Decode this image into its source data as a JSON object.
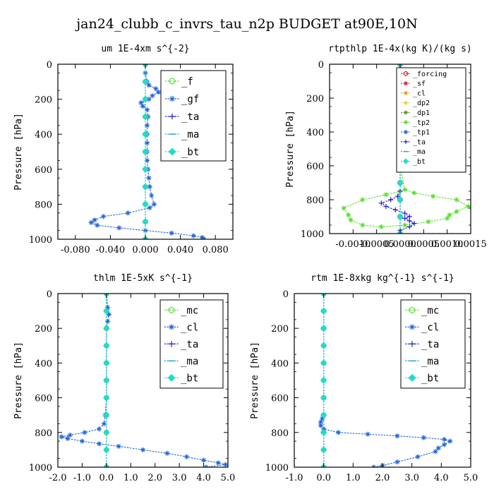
{
  "figure_title": "jan24_clubb_c_invrs_tau_n2p  BUDGET at90E,10N",
  "chart_data": [
    {
      "type": "line",
      "title": "um  1E-4xm s^{-2}",
      "ylabel": "Pressure [hPa]",
      "xlim": [
        -0.1,
        0.1
      ],
      "ylim": [
        1000,
        0
      ],
      "xticks": [
        "-0.080",
        "-0.040",
        "0.000",
        "0.040",
        "0.080"
      ],
      "xtick_values": [
        -0.08,
        -0.04,
        0.0,
        0.04,
        0.08
      ],
      "yticks": [
        "0",
        "200",
        "400",
        "600",
        "800",
        "1000"
      ],
      "ytick_values": [
        0,
        200,
        400,
        600,
        800,
        1000
      ],
      "legend": {
        "position": "top-right",
        "font_size": 14
      },
      "series": [
        {
          "name": "_f",
          "color": "#55e02a",
          "marker": "circle",
          "x": [
            0,
            0,
            0,
            0,
            0,
            0,
            0,
            0,
            0,
            0,
            0
          ],
          "y": [
            0,
            100,
            200,
            300,
            400,
            500,
            600,
            700,
            800,
            900,
            1000
          ]
        },
        {
          "name": "_gf",
          "color": "#1f63d8",
          "marker": "star",
          "x": [
            0.0,
            0.0,
            0.002,
            0.004,
            0.012,
            0.015,
            0.008,
            0.004,
            -0.005,
            -0.003,
            0.002,
            0.003,
            0.002,
            0.002,
            0.002,
            0.002,
            0.002,
            0.003,
            0.004,
            0.005,
            0.007,
            0.01,
            0.005,
            -0.02,
            -0.048,
            -0.058,
            -0.062,
            -0.055,
            -0.03,
            0.0,
            0.03,
            0.055,
            0.065,
            0.067
          ],
          "y": [
            0,
            50,
            100,
            120,
            140,
            160,
            180,
            200,
            220,
            240,
            260,
            300,
            350,
            400,
            450,
            500,
            550,
            600,
            650,
            700,
            750,
            800,
            820,
            850,
            870,
            890,
            905,
            920,
            935,
            950,
            965,
            980,
            990,
            1000
          ]
        },
        {
          "name": "_ta",
          "color": "#2222cc",
          "marker": "plus",
          "x": [
            0,
            0,
            0,
            0,
            0,
            0,
            0,
            0,
            0,
            0,
            0
          ],
          "y": [
            0,
            100,
            200,
            300,
            400,
            500,
            600,
            700,
            800,
            900,
            1000
          ]
        },
        {
          "name": "_ma",
          "color": "#1aa0d8",
          "marker": "dash",
          "x": [
            0,
            0,
            0,
            0,
            0,
            0,
            0,
            0,
            0,
            0,
            0
          ],
          "y": [
            0,
            100,
            200,
            300,
            400,
            500,
            600,
            700,
            800,
            900,
            1000
          ]
        },
        {
          "name": "_bt",
          "color": "#20dccc",
          "marker": "diamond",
          "x": [
            0,
            0,
            0,
            0,
            0,
            0,
            0,
            0,
            0,
            0,
            0
          ],
          "y": [
            0,
            100,
            200,
            300,
            400,
            500,
            600,
            700,
            800,
            900,
            1000
          ]
        }
      ]
    },
    {
      "type": "line",
      "title": "rtpthlp  1E-4x(kg K)/(kg s)",
      "ylabel": "Pressure [hPa]",
      "xlim": [
        -0.0015,
        0.0015
      ],
      "ylim": [
        1000,
        0
      ],
      "xticks": [
        "-0.0010",
        "-0.0005",
        "0.0000",
        "0.0005",
        "0.0010",
        "0.0015"
      ],
      "xtick_values": [
        -0.001,
        -0.0005,
        0.0,
        0.0005,
        0.001,
        0.0015
      ],
      "yticks": [
        "0",
        "200",
        "400",
        "600",
        "800",
        "1000"
      ],
      "ytick_values": [
        0,
        200,
        400,
        600,
        800,
        1000
      ],
      "legend": {
        "position": "top-right",
        "font_size": 10
      },
      "series": [
        {
          "name": "_forcing",
          "color": "#e02020",
          "marker": "circle",
          "x": [
            0,
            0,
            0,
            0,
            0,
            0,
            0,
            0,
            0,
            0,
            0
          ],
          "y": [
            0,
            100,
            200,
            300,
            400,
            500,
            600,
            700,
            800,
            900,
            1000
          ]
        },
        {
          "name": "_sf",
          "color": "#e02020",
          "marker": "star",
          "x": [
            0,
            0,
            0,
            0,
            0,
            0,
            0,
            0,
            0,
            0,
            0
          ],
          "y": [
            0,
            100,
            200,
            300,
            400,
            500,
            600,
            700,
            800,
            900,
            1000
          ]
        },
        {
          "name": "_cl",
          "color": "#e0a020",
          "marker": "star",
          "x": [
            0,
            0,
            0,
            0,
            0,
            0,
            0,
            0,
            0,
            0,
            0
          ],
          "y": [
            0,
            100,
            200,
            300,
            400,
            500,
            600,
            700,
            800,
            900,
            1000
          ]
        },
        {
          "name": "_dp2",
          "color": "#f0d030",
          "marker": "star",
          "x": [
            0,
            0,
            0,
            0,
            0,
            0,
            0,
            0,
            0,
            0,
            0
          ],
          "y": [
            0,
            100,
            200,
            300,
            400,
            500,
            600,
            700,
            800,
            900,
            1000
          ]
        },
        {
          "name": "_dp1",
          "color": "#5a9a20",
          "marker": "star",
          "x": [
            0,
            0,
            0,
            0,
            0,
            0,
            0,
            0,
            0,
            0,
            0
          ],
          "y": [
            0,
            100,
            200,
            300,
            400,
            500,
            600,
            700,
            800,
            900,
            1000
          ]
        },
        {
          "name": "_tp2",
          "color": "#55e02a",
          "marker": "star",
          "x": [
            0,
            0,
            0,
            0,
            0,
            0,
            0,
            0.0001,
            0.0003,
            0.0007,
            0.0012,
            0.00145,
            0.0012,
            0.00105,
            0.001,
            0.0006,
            0.0001,
            -0.0004,
            -0.0008,
            -0.00105,
            -0.0011,
            -0.0012,
            -0.0008,
            -0.0003,
            0
          ],
          "y": [
            0,
            100,
            200,
            300,
            400,
            500,
            600,
            740,
            760,
            780,
            800,
            840,
            870,
            890,
            910,
            930,
            950,
            960,
            950,
            920,
            890,
            850,
            800,
            770,
            750
          ]
        },
        {
          "name": "_tp1",
          "color": "#1f63d8",
          "marker": "star",
          "x": [
            0,
            0,
            0,
            0,
            0,
            0,
            0,
            0,
            0,
            0,
            0
          ],
          "y": [
            0,
            100,
            200,
            300,
            400,
            500,
            600,
            700,
            800,
            900,
            1000
          ]
        },
        {
          "name": "_ta",
          "color": "#2222cc",
          "marker": "plus",
          "x": [
            0,
            0,
            0,
            0,
            0,
            0,
            -5e-05,
            -0.0002,
            -0.0004,
            -0.0003,
            -0.0001,
            0.0001,
            0.0002,
            0.0001,
            0.0002,
            0.0003,
            0.0002,
            0
          ],
          "y": [
            0,
            200,
            400,
            600,
            700,
            750,
            780,
            800,
            820,
            840,
            860,
            880,
            900,
            910,
            925,
            940,
            960,
            980
          ]
        },
        {
          "name": "_ma",
          "color": "#1aa0d8",
          "marker": "dash",
          "x": [
            0,
            0,
            0,
            0,
            0,
            0,
            0,
            0,
            0,
            0,
            0
          ],
          "y": [
            0,
            100,
            200,
            300,
            400,
            500,
            600,
            700,
            800,
            900,
            1000
          ]
        },
        {
          "name": "_bt",
          "color": "#20dccc",
          "marker": "diamond",
          "x": [
            0,
            0,
            0,
            0,
            0,
            0,
            0,
            0,
            0,
            0,
            0
          ],
          "y": [
            0,
            100,
            200,
            300,
            400,
            500,
            600,
            700,
            800,
            900,
            1000
          ]
        }
      ]
    },
    {
      "type": "line",
      "title": "thlm  1E-5xK s^{-1}",
      "ylabel": "Pressure [hPa]",
      "xlim": [
        -2.0,
        5.0
      ],
      "ylim": [
        1000,
        0
      ],
      "xticks": [
        "-2.0",
        "-1.0",
        "0.0",
        "1.0",
        "2.0",
        "3.0",
        "4.0",
        "5.0"
      ],
      "xtick_values": [
        -2,
        -1,
        0,
        1,
        2,
        3,
        4,
        5
      ],
      "yticks": [
        "0",
        "200",
        "400",
        "600",
        "800",
        "1000"
      ],
      "ytick_values": [
        0,
        200,
        400,
        600,
        800,
        1000
      ],
      "legend": {
        "position": "top-right",
        "font_size": 14
      },
      "series": [
        {
          "name": "_mc",
          "color": "#55e02a",
          "marker": "circle",
          "x": [
            0,
            0,
            0,
            0,
            0,
            0,
            0,
            0,
            0,
            0,
            0
          ],
          "y": [
            0,
            100,
            200,
            300,
            400,
            500,
            600,
            700,
            800,
            900,
            1000
          ]
        },
        {
          "name": "_cl",
          "color": "#1f63d8",
          "marker": "star",
          "x": [
            0.0,
            0.05,
            0.1,
            0.05,
            0.0,
            0.0,
            0.0,
            0.0,
            0.0,
            -0.05,
            -0.1,
            -0.3,
            -0.9,
            -1.5,
            -1.85,
            -1.6,
            -1.0,
            -0.3,
            0.5,
            1.5,
            2.5,
            3.3,
            4.0,
            4.6,
            4.9,
            4.1
          ],
          "y": [
            0,
            80,
            120,
            160,
            200,
            300,
            400,
            500,
            600,
            700,
            750,
            780,
            800,
            815,
            825,
            835,
            850,
            865,
            880,
            900,
            920,
            940,
            960,
            975,
            985,
            1000
          ]
        },
        {
          "name": "_ta",
          "color": "#2222cc",
          "marker": "plus",
          "x": [
            0,
            0,
            0,
            0,
            0,
            0,
            0,
            0,
            0,
            0,
            0
          ],
          "y": [
            0,
            100,
            200,
            300,
            400,
            500,
            600,
            700,
            800,
            900,
            1000
          ]
        },
        {
          "name": "_ma",
          "color": "#1aa0d8",
          "marker": "dash",
          "x": [
            0,
            0,
            0,
            0,
            0,
            0,
            0,
            0,
            0,
            0,
            0
          ],
          "y": [
            0,
            100,
            200,
            300,
            400,
            500,
            600,
            700,
            800,
            900,
            1000
          ]
        },
        {
          "name": "_bt",
          "color": "#20dccc",
          "marker": "diamond",
          "x": [
            0,
            0,
            0,
            0,
            0,
            0,
            0,
            0,
            0,
            0,
            0
          ],
          "y": [
            0,
            100,
            200,
            300,
            400,
            500,
            600,
            700,
            800,
            900,
            1000
          ]
        }
      ]
    },
    {
      "type": "line",
      "title": "rtm  1E-8xkg kg^{-1} s^{-1}",
      "ylabel": "Pressure [hPa]",
      "xlim": [
        -1.0,
        5.0
      ],
      "ylim": [
        1000,
        0
      ],
      "xticks": [
        "-1.0",
        "0.0",
        "1.0",
        "2.0",
        "3.0",
        "4.0",
        "5.0"
      ],
      "xtick_values": [
        -1,
        0,
        1,
        2,
        3,
        4,
        5
      ],
      "yticks": [
        "0",
        "200",
        "400",
        "600",
        "800",
        "1000"
      ],
      "ytick_values": [
        0,
        200,
        400,
        600,
        800,
        1000
      ],
      "legend": {
        "position": "top-right",
        "font_size": 14
      },
      "series": [
        {
          "name": "_mc",
          "color": "#55e02a",
          "marker": "circle",
          "x": [
            0,
            0,
            0,
            0,
            0,
            0,
            0,
            0,
            0,
            0,
            0
          ],
          "y": [
            0,
            100,
            200,
            300,
            400,
            500,
            600,
            700,
            800,
            900,
            1000
          ]
        },
        {
          "name": "_cl",
          "color": "#1f63d8",
          "marker": "star",
          "x": [
            0.0,
            0.0,
            0.0,
            0.0,
            0.0,
            -0.05,
            -0.1,
            -0.1,
            0.0,
            0.5,
            1.5,
            2.5,
            3.4,
            4.1,
            4.3,
            4.1,
            3.9,
            3.8,
            3.2,
            2.5,
            2.0,
            1.7
          ],
          "y": [
            0,
            200,
            400,
            600,
            700,
            720,
            740,
            760,
            780,
            800,
            810,
            820,
            830,
            840,
            850,
            870,
            890,
            910,
            940,
            970,
            990,
            1000
          ]
        },
        {
          "name": "_ta",
          "color": "#2222cc",
          "marker": "plus",
          "x": [
            0,
            0,
            0,
            0,
            0,
            0,
            0,
            0,
            0,
            0,
            0
          ],
          "y": [
            0,
            100,
            200,
            300,
            400,
            500,
            600,
            700,
            800,
            900,
            1000
          ]
        },
        {
          "name": "_ma",
          "color": "#1aa0d8",
          "marker": "dash",
          "x": [
            0,
            0,
            0,
            0,
            0,
            0,
            0,
            0,
            0,
            0,
            0
          ],
          "y": [
            0,
            100,
            200,
            300,
            400,
            500,
            600,
            700,
            800,
            900,
            1000
          ]
        },
        {
          "name": "_bt",
          "color": "#20dccc",
          "marker": "diamond",
          "x": [
            0,
            0,
            0,
            0,
            0,
            0,
            0,
            0,
            0,
            0,
            0
          ],
          "y": [
            0,
            100,
            200,
            300,
            400,
            500,
            600,
            700,
            800,
            900,
            1000
          ]
        }
      ]
    }
  ]
}
